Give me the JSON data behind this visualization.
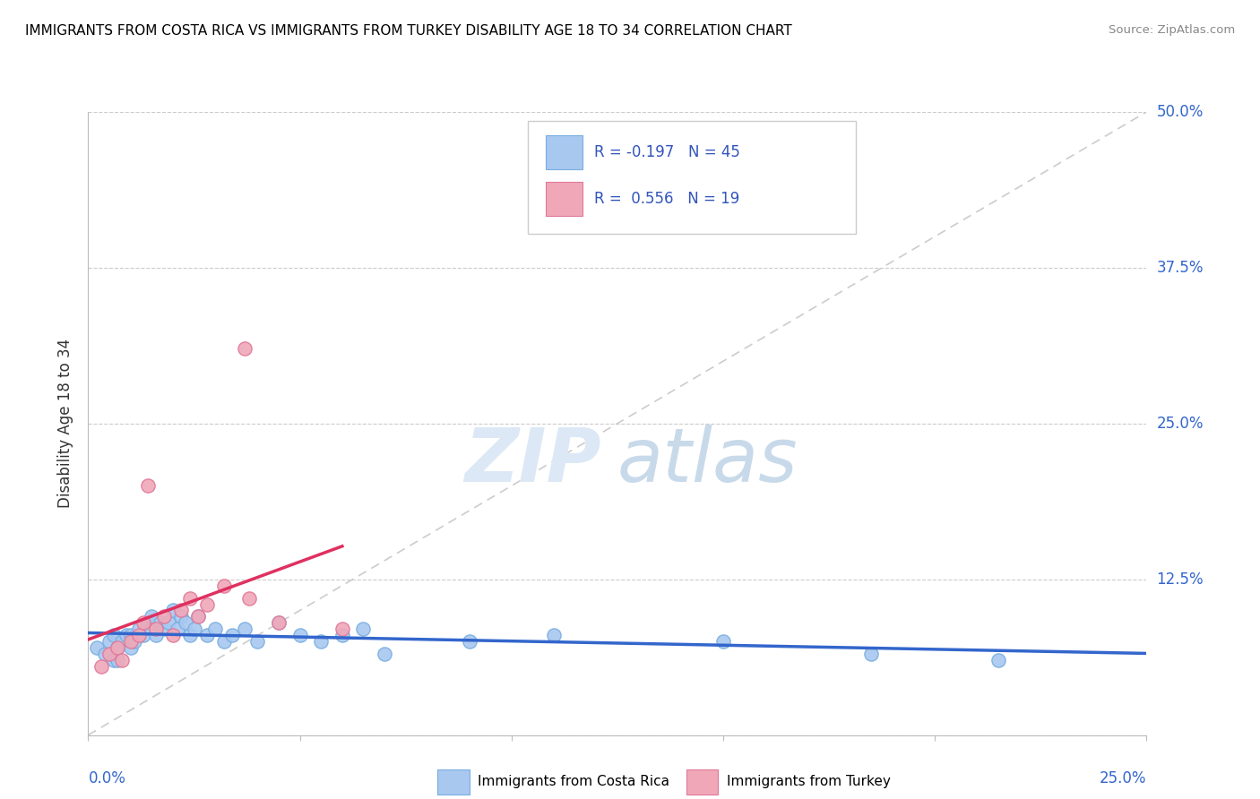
{
  "title": "IMMIGRANTS FROM COSTA RICA VS IMMIGRANTS FROM TURKEY DISABILITY AGE 18 TO 34 CORRELATION CHART",
  "source": "Source: ZipAtlas.com",
  "ylabel": "Disability Age 18 to 34",
  "xlim": [
    0,
    0.25
  ],
  "ylim": [
    0,
    0.5
  ],
  "color_cr": "#a8c8f0",
  "color_cr_edge": "#7aaee0",
  "color_tr": "#f0a8b8",
  "color_tr_edge": "#e07898",
  "color_cr_line": "#3366cc",
  "color_tr_line": "#e03060",
  "color_diag": "#cccccc",
  "watermark_zip_color": "#d0dff0",
  "watermark_atlas_color": "#c0d4e8",
  "costa_rica_x": [
    0.002,
    0.004,
    0.005,
    0.006,
    0.006,
    0.007,
    0.007,
    0.008,
    0.009,
    0.01,
    0.01,
    0.011,
    0.012,
    0.013,
    0.014,
    0.015,
    0.015,
    0.016,
    0.017,
    0.018,
    0.019,
    0.02,
    0.021,
    0.022,
    0.023,
    0.024,
    0.025,
    0.026,
    0.028,
    0.03,
    0.032,
    0.034,
    0.037,
    0.04,
    0.045,
    0.05,
    0.055,
    0.06,
    0.065,
    0.07,
    0.09,
    0.11,
    0.15,
    0.185,
    0.215
  ],
  "costa_rica_y": [
    0.07,
    0.065,
    0.075,
    0.08,
    0.06,
    0.07,
    0.06,
    0.075,
    0.08,
    0.07,
    0.08,
    0.075,
    0.085,
    0.08,
    0.09,
    0.085,
    0.095,
    0.08,
    0.09,
    0.085,
    0.09,
    0.1,
    0.085,
    0.095,
    0.09,
    0.08,
    0.085,
    0.095,
    0.08,
    0.085,
    0.075,
    0.08,
    0.085,
    0.075,
    0.09,
    0.08,
    0.075,
    0.08,
    0.085,
    0.065,
    0.075,
    0.08,
    0.075,
    0.065,
    0.06
  ],
  "turkey_x": [
    0.003,
    0.005,
    0.007,
    0.008,
    0.01,
    0.012,
    0.013,
    0.014,
    0.016,
    0.018,
    0.02,
    0.022,
    0.024,
    0.026,
    0.028,
    0.032,
    0.038,
    0.045,
    0.06
  ],
  "turkey_y": [
    0.055,
    0.065,
    0.07,
    0.06,
    0.075,
    0.08,
    0.09,
    0.2,
    0.085,
    0.095,
    0.08,
    0.1,
    0.11,
    0.095,
    0.105,
    0.12,
    0.11,
    0.09,
    0.085
  ]
}
